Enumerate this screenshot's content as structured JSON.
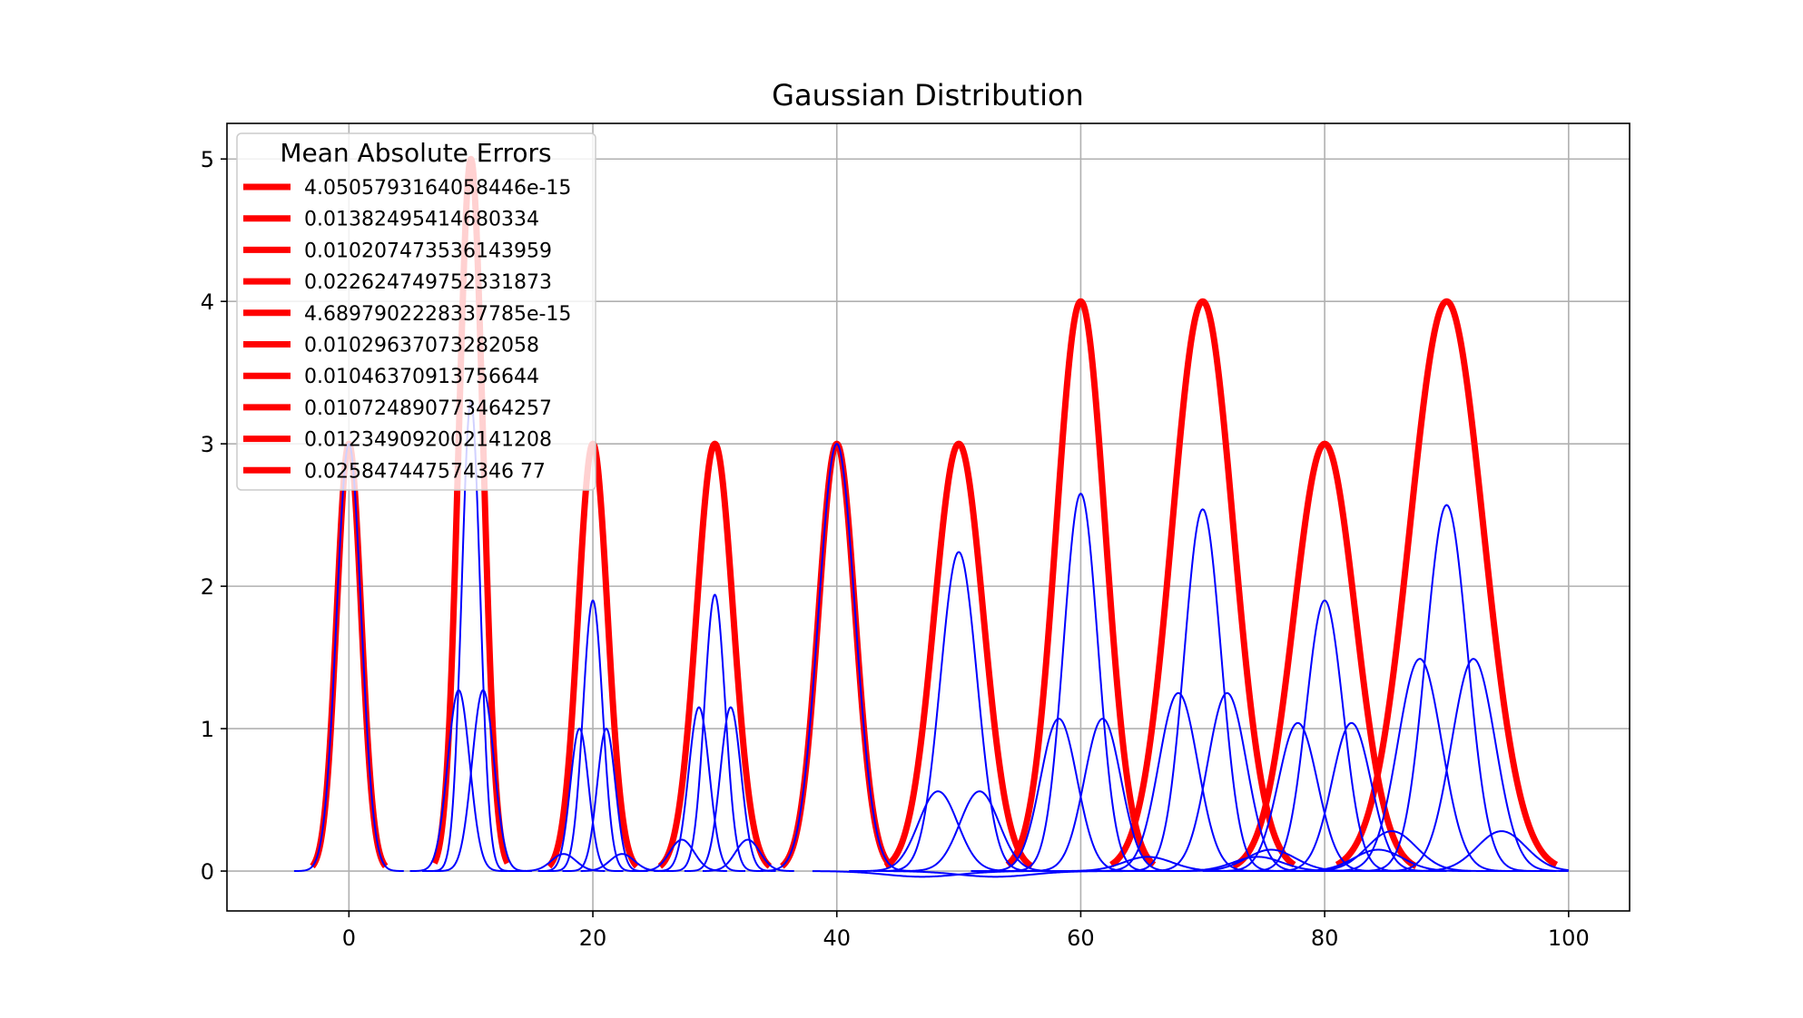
{
  "chart_data": {
    "type": "line",
    "title": "Gaussian Distribution",
    "xlabel": "",
    "ylabel": "",
    "xlim": [
      -10,
      105
    ],
    "ylim": [
      -0.28,
      5.25
    ],
    "xticks": [
      0,
      20,
      40,
      60,
      80,
      100
    ],
    "yticks": [
      0,
      1,
      2,
      3,
      4,
      5
    ],
    "grid": true,
    "legend": {
      "title": "Mean Absolute Errors",
      "placement": "top-left",
      "entries": [
        "4.0505793164058446e-15",
        "0.01382495414680334",
        "0.010207473536143959",
        "0.022624749752331873",
        "4.6897902228337785e-15",
        "0.01029637073282058",
        "0.01046370913756644",
        "0.010724890773464257",
        "0.012349092002141208",
        "0.025847447574346 77"
      ]
    },
    "colors": {
      "target": "#ff0000",
      "components": "#0000ff"
    },
    "targets": [
      {
        "center": 0,
        "amplitude": 3,
        "sigma": 1.0,
        "xrange": [
          -3,
          3
        ]
      },
      {
        "center": 10,
        "amplitude": 5,
        "sigma": 1.0,
        "xrange": [
          7,
          13
        ]
      },
      {
        "center": 20,
        "amplitude": 3,
        "sigma": 1.2,
        "xrange": [
          16.4,
          23.6
        ]
      },
      {
        "center": 30,
        "amplitude": 3,
        "sigma": 1.5,
        "xrange": [
          25.5,
          34.5
        ]
      },
      {
        "center": 40,
        "amplitude": 3,
        "sigma": 1.5,
        "xrange": [
          35.5,
          44.5
        ]
      },
      {
        "center": 50,
        "amplitude": 3,
        "sigma": 2.0,
        "xrange": [
          44,
          56
        ]
      },
      {
        "center": 60,
        "amplitude": 4,
        "sigma": 2.0,
        "xrange": [
          54,
          66
        ]
      },
      {
        "center": 70,
        "amplitude": 4,
        "sigma": 2.5,
        "xrange": [
          62.5,
          77.5
        ]
      },
      {
        "center": 80,
        "amplitude": 3,
        "sigma": 2.5,
        "xrange": [
          72.5,
          87.5
        ]
      },
      {
        "center": 90,
        "amplitude": 4,
        "sigma": 3.0,
        "xrange": [
          81,
          99
        ]
      }
    ],
    "components": [
      {
        "center": 0,
        "amplitude": 3.0,
        "sigma": 1.0,
        "xrange": [
          -4.5,
          4.5
        ]
      },
      {
        "center": 9,
        "amplitude": 1.27,
        "sigma": 0.9,
        "xrange": [
          5,
          13
        ]
      },
      {
        "center": 11,
        "amplitude": 1.27,
        "sigma": 0.9,
        "xrange": [
          7,
          15
        ]
      },
      {
        "center": 10,
        "amplitude": 3.3,
        "sigma": 0.75,
        "xrange": [
          6,
          14
        ]
      },
      {
        "center": 20,
        "amplitude": 1.9,
        "sigma": 0.8,
        "xrange": [
          16,
          24
        ]
      },
      {
        "center": 18.9,
        "amplitude": 1.0,
        "sigma": 0.75,
        "xrange": [
          15.5,
          22.5
        ]
      },
      {
        "center": 21.1,
        "amplitude": 1.0,
        "sigma": 0.75,
        "xrange": [
          17.5,
          24.5
        ]
      },
      {
        "center": 17.6,
        "amplitude": 0.12,
        "sigma": 1.0,
        "xrange": [
          14,
          21
        ]
      },
      {
        "center": 22.4,
        "amplitude": 0.12,
        "sigma": 1.0,
        "xrange": [
          19,
          26
        ]
      },
      {
        "center": 30,
        "amplitude": 1.94,
        "sigma": 0.85,
        "xrange": [
          26,
          34
        ]
      },
      {
        "center": 28.7,
        "amplitude": 1.15,
        "sigma": 0.85,
        "xrange": [
          25,
          32.5
        ]
      },
      {
        "center": 31.3,
        "amplitude": 1.15,
        "sigma": 0.85,
        "xrange": [
          27.5,
          35
        ]
      },
      {
        "center": 27.3,
        "amplitude": 0.22,
        "sigma": 1.0,
        "xrange": [
          23.5,
          31
        ]
      },
      {
        "center": 32.7,
        "amplitude": 0.22,
        "sigma": 1.0,
        "xrange": [
          29,
          36.5
        ]
      },
      {
        "center": 40,
        "amplitude": 3.0,
        "sigma": 1.5,
        "xrange": [
          34,
          46
        ]
      },
      {
        "center": 50,
        "amplitude": 2.24,
        "sigma": 1.5,
        "xrange": [
          43,
          57
        ]
      },
      {
        "center": 48.3,
        "amplitude": 0.56,
        "sigma": 1.6,
        "xrange": [
          41,
          56
        ]
      },
      {
        "center": 51.7,
        "amplitude": 0.56,
        "sigma": 1.6,
        "xrange": [
          44,
          59
        ]
      },
      {
        "center": 60,
        "amplitude": 2.65,
        "sigma": 1.4,
        "xrange": [
          53,
          67
        ]
      },
      {
        "center": 58.2,
        "amplitude": 1.07,
        "sigma": 1.5,
        "xrange": [
          51,
          66
        ]
      },
      {
        "center": 61.8,
        "amplitude": 1.07,
        "sigma": 1.5,
        "xrange": [
          54,
          69
        ]
      },
      {
        "center": 70,
        "amplitude": 2.54,
        "sigma": 1.5,
        "xrange": [
          62,
          78
        ]
      },
      {
        "center": 68.0,
        "amplitude": 1.25,
        "sigma": 1.6,
        "xrange": [
          60,
          76
        ]
      },
      {
        "center": 72.0,
        "amplitude": 1.25,
        "sigma": 1.6,
        "xrange": [
          64,
          80
        ]
      },
      {
        "center": 65.5,
        "amplitude": 0.1,
        "sigma": 2.0,
        "xrange": [
          58,
          74
        ]
      },
      {
        "center": 74.5,
        "amplitude": 0.1,
        "sigma": 2.0,
        "xrange": [
          66,
          82
        ]
      },
      {
        "center": 80,
        "amplitude": 1.9,
        "sigma": 1.5,
        "xrange": [
          72,
          88
        ]
      },
      {
        "center": 77.8,
        "amplitude": 1.04,
        "sigma": 1.6,
        "xrange": [
          70,
          86
        ]
      },
      {
        "center": 82.2,
        "amplitude": 1.04,
        "sigma": 1.6,
        "xrange": [
          74,
          90
        ]
      },
      {
        "center": 75.6,
        "amplitude": 0.15,
        "sigma": 2.0,
        "xrange": [
          68,
          84
        ]
      },
      {
        "center": 84.4,
        "amplitude": 0.15,
        "sigma": 2.0,
        "xrange": [
          76,
          92
        ]
      },
      {
        "center": 90,
        "amplitude": 2.57,
        "sigma": 1.7,
        "xrange": [
          81,
          99
        ]
      },
      {
        "center": 87.8,
        "amplitude": 1.49,
        "sigma": 1.8,
        "xrange": [
          80,
          97
        ]
      },
      {
        "center": 92.2,
        "amplitude": 1.49,
        "sigma": 1.8,
        "xrange": [
          83,
          100
        ]
      },
      {
        "center": 85.5,
        "amplitude": 0.28,
        "sigma": 2.0,
        "xrange": [
          78,
          95
        ]
      },
      {
        "center": 94.5,
        "amplitude": 0.28,
        "sigma": 2.0,
        "xrange": [
          86,
          100
        ]
      }
    ],
    "dips": [
      {
        "center": 47,
        "amplitude": -0.04,
        "sigma": 3.0,
        "xrange": [
          38,
          58
        ]
      },
      {
        "center": 53,
        "amplitude": -0.04,
        "sigma": 3.0,
        "xrange": [
          44,
          64
        ]
      }
    ]
  }
}
